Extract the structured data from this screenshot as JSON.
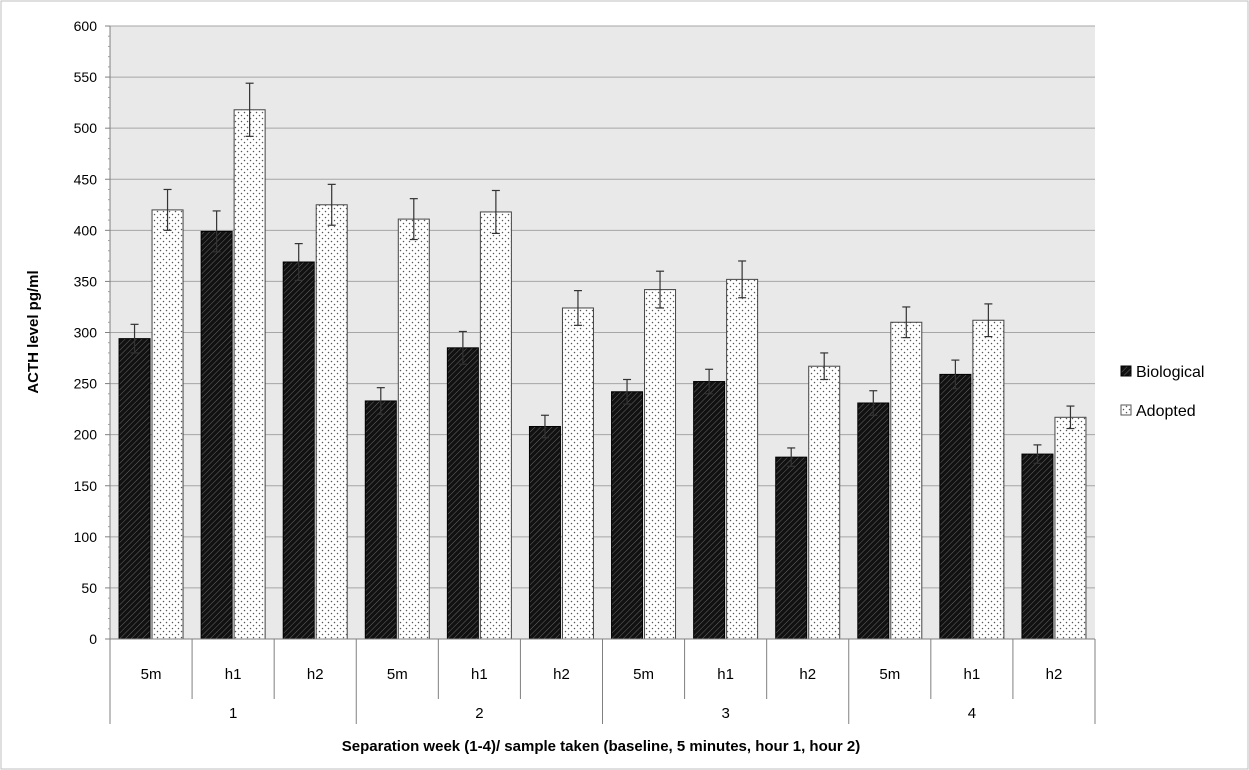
{
  "chart_data": {
    "type": "bar",
    "title": "",
    "xlabel": "Separation week (1-4)/ sample taken (baseline, 5 minutes, hour 1, hour 2)",
    "ylabel": "ACTH level pg/ml",
    "ylim": [
      0,
      600
    ],
    "yticks": [
      0,
      50,
      100,
      150,
      200,
      250,
      300,
      350,
      400,
      450,
      500,
      550,
      600
    ],
    "grid": true,
    "legend_position": "right",
    "groups": [
      {
        "label": "1",
        "categories": [
          "5m",
          "h1",
          "h2"
        ]
      },
      {
        "label": "2",
        "categories": [
          "5m",
          "h1",
          "h2"
        ]
      },
      {
        "label": "3",
        "categories": [
          "5m",
          "h1",
          "h2"
        ]
      },
      {
        "label": "4",
        "categories": [
          "5m",
          "h1",
          "h2"
        ]
      }
    ],
    "series": [
      {
        "name": "Biological",
        "fill": "#1a1a1a",
        "values": [
          294,
          399,
          369,
          233,
          285,
          208,
          242,
          252,
          178,
          231,
          259,
          181
        ],
        "errors": [
          14,
          20,
          18,
          13,
          16,
          11,
          12,
          12,
          9,
          12,
          14,
          9
        ]
      },
      {
        "name": "Adopted",
        "fill": "#ffffff",
        "values": [
          420,
          518,
          425,
          411,
          418,
          324,
          342,
          352,
          267,
          310,
          312,
          217
        ],
        "errors": [
          20,
          26,
          20,
          20,
          21,
          17,
          18,
          18,
          13,
          15,
          16,
          11
        ]
      }
    ]
  }
}
